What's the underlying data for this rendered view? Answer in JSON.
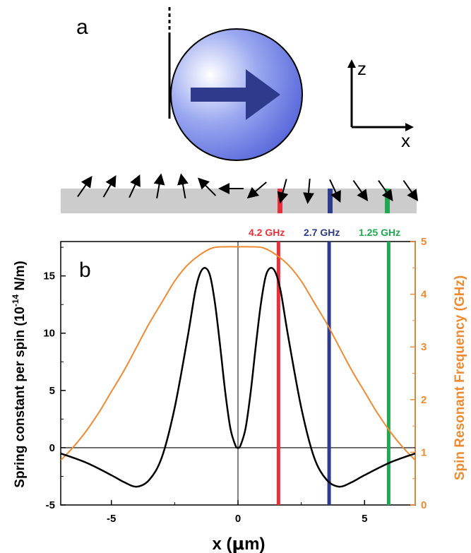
{
  "panel_a": {
    "label": "a",
    "axis_z": "z",
    "axis_x": "x"
  },
  "arrows": [
    {
      "angle_deg": 55
    },
    {
      "angle_deg": 60
    },
    {
      "angle_deg": 65
    },
    {
      "angle_deg": 80
    },
    {
      "angle_deg": 100
    },
    {
      "angle_deg": 135
    },
    {
      "angle_deg": 180
    },
    {
      "angle_deg": 220
    },
    {
      "angle_deg": 255
    },
    {
      "angle_deg": 265
    },
    {
      "angle_deg": 295
    },
    {
      "angle_deg": 305
    },
    {
      "angle_deg": 305
    },
    {
      "angle_deg": 305
    }
  ],
  "panel_b": {
    "label": "b",
    "xlabel_prefix": "x (",
    "xlabel_mu": "μ",
    "xlabel_suffix": "m)",
    "ylabel_left_main": "Spring constant per spin (10",
    "ylabel_left_exp": "-14",
    "ylabel_left_tail": " N/m)",
    "ylabel_right": "Spin Resonant Frequency (GHz)"
  },
  "colors": {
    "spring": "#000000",
    "frequency": "#f08a30",
    "red": "#e8303a",
    "blue": "#2e3a8c",
    "green": "#20a850",
    "strip": "#cccccc"
  },
  "chart_data": {
    "type": "line",
    "xlim": [
      -7,
      7
    ],
    "ylim_left": [
      -5,
      18
    ],
    "ylim_right": [
      0,
      5
    ],
    "x_ticks": [
      -5,
      0,
      5
    ],
    "y_ticks_left": [
      -5,
      0,
      5,
      10,
      15
    ],
    "y_ticks_right": [
      0,
      1,
      2,
      3,
      4,
      5
    ],
    "markers": [
      {
        "x": 1.6,
        "label": "4.2 GHz",
        "color": "#e8303a"
      },
      {
        "x": 3.6,
        "label": "2.7 GHz",
        "color": "#2e3a8c"
      },
      {
        "x": 5.95,
        "label": "1.25 GHz",
        "color": "#20a850"
      }
    ],
    "series": [
      {
        "axis": "left",
        "x": [
          -7,
          -6,
          -5,
          -4.5,
          -4,
          -3.5,
          -3,
          -2.5,
          -2,
          -1.7,
          -1.5,
          -1.3,
          -1.1,
          -0.9,
          -0.7,
          -0.5,
          -0.3,
          -0.1,
          0,
          0.1,
          0.3,
          0.5,
          0.7,
          0.9,
          1.1,
          1.3,
          1.5,
          1.7,
          2,
          2.5,
          3,
          3.5,
          4,
          4.5,
          5,
          6,
          7
        ],
        "y": [
          -0.5,
          -1.3,
          -2.4,
          -3.0,
          -3.4,
          -2.8,
          -0.8,
          3.5,
          9.5,
          13.5,
          15.2,
          15.7,
          15.0,
          12.5,
          8.8,
          4.8,
          1.7,
          0.2,
          0,
          0.2,
          1.7,
          4.8,
          8.8,
          12.5,
          15.0,
          15.7,
          15.2,
          13.5,
          9.5,
          3.5,
          -0.8,
          -2.8,
          -3.4,
          -3.0,
          -2.4,
          -1.3,
          -0.5
        ]
      },
      {
        "axis": "right",
        "x": [
          -7,
          -6.5,
          -6,
          -5.5,
          -5,
          -4.5,
          -4,
          -3.5,
          -3,
          -2.5,
          -2,
          -1.5,
          -1,
          -0.5,
          0,
          0.5,
          1,
          1.5,
          2,
          2.5,
          3,
          3.5,
          4,
          4.5,
          5,
          5.5,
          6,
          6.5,
          7
        ],
        "y": [
          0.85,
          1.1,
          1.4,
          1.75,
          2.15,
          2.55,
          3.0,
          3.45,
          3.85,
          4.25,
          4.55,
          4.75,
          4.88,
          4.9,
          4.9,
          4.9,
          4.88,
          4.75,
          4.55,
          4.25,
          3.85,
          3.45,
          3.0,
          2.55,
          2.15,
          1.75,
          1.4,
          1.1,
          0.85
        ]
      }
    ]
  }
}
